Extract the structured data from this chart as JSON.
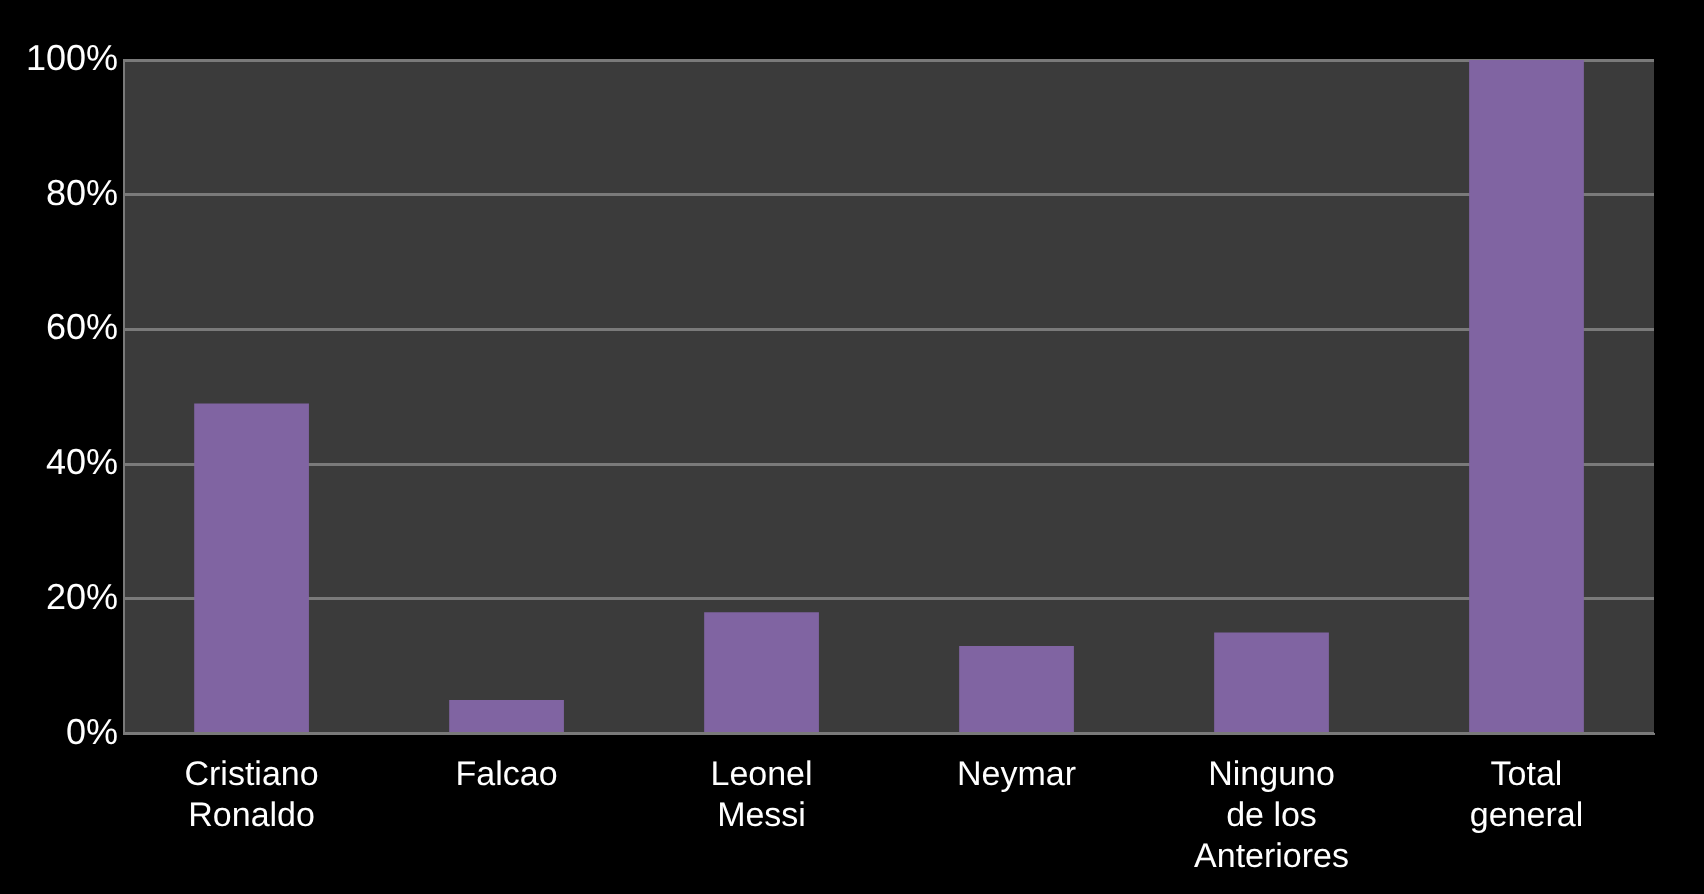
{
  "chart_data": {
    "type": "bar",
    "categories": [
      "Cristiano Ronaldo",
      "Falcao",
      "Leonel Messi",
      "Neymar",
      "Ninguno de los Anteriores",
      "Total general"
    ],
    "values": [
      49,
      5,
      18,
      13,
      15,
      100
    ],
    "color": "#8064a2",
    "ylim": [
      0,
      100
    ],
    "yticks": [
      {
        "value": 0,
        "label": "0%"
      },
      {
        "value": 20,
        "label": "20%"
      },
      {
        "value": 40,
        "label": "40%"
      },
      {
        "value": 60,
        "label": "60%"
      },
      {
        "value": 80,
        "label": "80%"
      },
      {
        "value": 100,
        "label": "100%"
      }
    ],
    "grid": "y"
  }
}
